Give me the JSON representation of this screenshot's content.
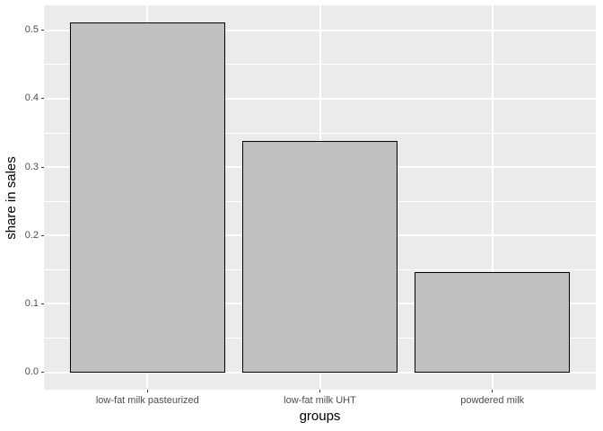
{
  "figure": {
    "background_color": "#ffffff",
    "panel_background_color": "#ebebeb",
    "grid_color": "#ffffff",
    "axis_text_color": "#4d4d4d",
    "axis_title_color": "#000000",
    "tick_mark_color": "#333333"
  },
  "chart_data": {
    "type": "bar",
    "title": "",
    "xlabel": "groups",
    "ylabel": "share in sales",
    "categories": [
      "low-fat milk pasteurized",
      "low-fat milk UHT",
      "powdered milk"
    ],
    "values": [
      0.511,
      0.338,
      0.146
    ],
    "bar_fill_color": "#c0c0c0",
    "bar_border_color": "#000000",
    "bar_width_fraction": 0.9,
    "ytick_labels": [
      "0.0",
      "0.1",
      "0.2",
      "0.3",
      "0.4",
      "0.5"
    ],
    "ytick_values": [
      0.0,
      0.1,
      0.2,
      0.3,
      0.4,
      0.5
    ],
    "ylim": [
      -0.0256,
      0.5366
    ],
    "xlim": [
      0.4,
      3.6
    ],
    "grid": "white major and minor horizontal lines, white vertical lines at category centers",
    "legend_position": "none",
    "theme": "ggplot2 grey"
  }
}
